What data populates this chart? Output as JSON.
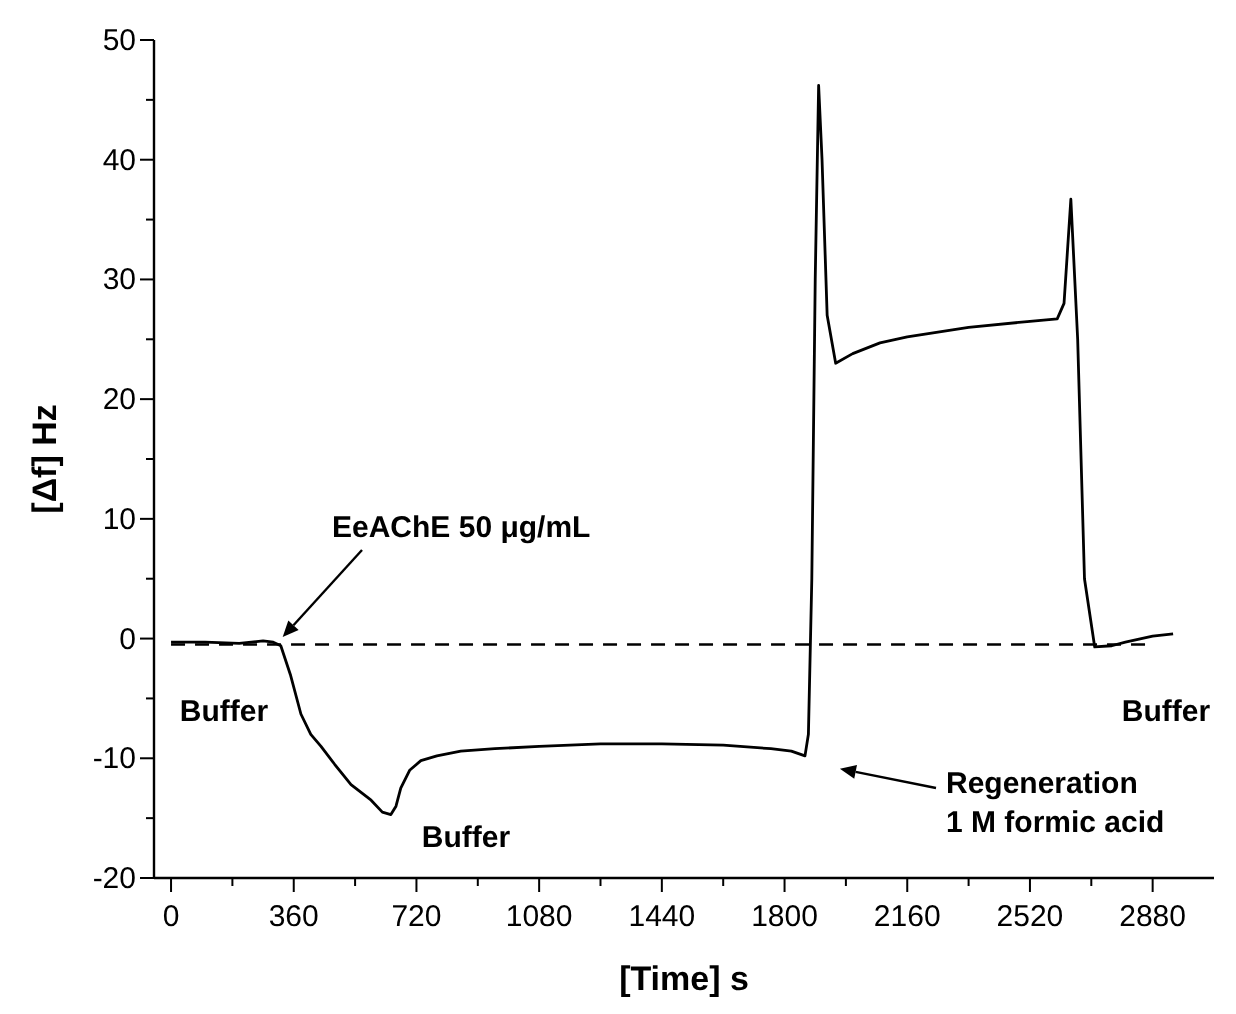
{
  "chart_data": {
    "type": "line",
    "xlabel": "[Time] s",
    "ylabel": "[Δf] Hz",
    "xlim": [
      -50,
      3060
    ],
    "ylim": [
      -20,
      50
    ],
    "xticks": [
      0,
      {
        "value": 180,
        "label": null
      },
      360,
      {
        "value": 540,
        "label": null
      },
      720,
      {
        "value": 900,
        "label": null
      },
      1080,
      {
        "value": 1260,
        "label": null
      },
      1440,
      {
        "value": 1620,
        "label": null
      },
      1800,
      {
        "value": 1980,
        "label": null
      },
      2160,
      {
        "value": 2340,
        "label": null
      },
      2520,
      {
        "value": 2700,
        "label": null
      },
      2880
    ],
    "yticks": [
      -20,
      {
        "value": -15,
        "label": null
      },
      -10,
      {
        "value": -5,
        "label": null
      },
      0,
      {
        "value": 5,
        "label": null
      },
      10,
      {
        "value": 15,
        "label": null
      },
      20,
      {
        "value": 25,
        "label": null
      },
      30,
      {
        "value": 35,
        "label": null
      },
      40,
      {
        "value": 45,
        "label": null
      },
      50
    ],
    "series": [
      {
        "color": "#000000",
        "x": [
          0,
          100,
          200,
          270,
          300,
          322,
          350,
          381,
          410,
          440,
          480,
          528,
          587,
          620,
          645,
          660,
          674,
          700,
          733,
          780,
          850,
          950,
          1080,
          1260,
          1440,
          1620,
          1760,
          1820,
          1860,
          1870,
          1880,
          1890,
          1900,
          1910,
          1925,
          1950,
          2000,
          2080,
          2160,
          2340,
          2520,
          2600,
          2620,
          2640,
          2660,
          2680,
          2710,
          2760,
          2800,
          2880,
          2940
        ],
        "values": [
          -0.3,
          -0.3,
          -0.4,
          -0.2,
          -0.3,
          -0.6,
          -3,
          -6.3,
          -8,
          -9,
          -10.5,
          -12.2,
          -13.5,
          -14.5,
          -14.7,
          -14,
          -12.5,
          -11,
          -10.2,
          -9.8,
          -9.4,
          -9.2,
          -9,
          -8.8,
          -8.8,
          -8.9,
          -9.2,
          -9.4,
          -9.8,
          -8,
          5,
          30,
          46.2,
          40,
          27,
          23,
          23.8,
          24.7,
          25.2,
          26,
          26.5,
          26.7,
          28,
          36.7,
          25,
          5,
          -0.7,
          -0.6,
          -0.3,
          0.2,
          0.4
        ]
      }
    ],
    "ref_lines": [
      {
        "axis": "y",
        "value": -0.5,
        "line_style": "dashed",
        "color": "#000000"
      }
    ],
    "annotations": [
      "EeAChE 50 μg/mL",
      "Buffer",
      "Buffer",
      "Regeneration\n1 M formic acid",
      "Buffer"
    ],
    "grid": false,
    "marker": "none",
    "line_style": "solid"
  }
}
